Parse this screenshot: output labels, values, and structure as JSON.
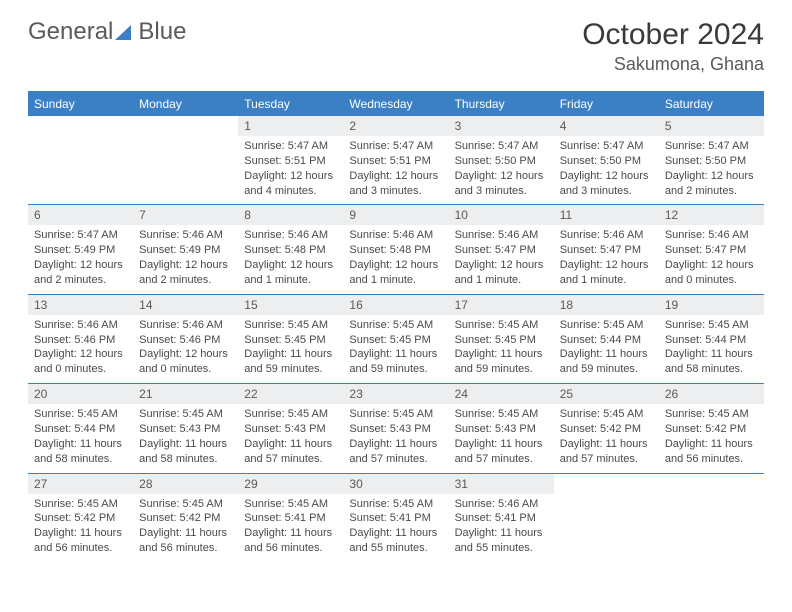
{
  "logo": {
    "general": "General",
    "blue": "Blue"
  },
  "title": "October 2024",
  "location": "Sakumona, Ghana",
  "day_headers": [
    "Sunday",
    "Monday",
    "Tuesday",
    "Wednesday",
    "Thursday",
    "Friday",
    "Saturday"
  ],
  "colors": {
    "accent": "#3b7fc4",
    "header_bg": "#3b7fc4",
    "header_text": "#ffffff",
    "daynum_bg": "#eceeef",
    "border": "#3b7fc4"
  },
  "weeks": [
    [
      {
        "n": "",
        "sr": "",
        "ss": "",
        "dl": ""
      },
      {
        "n": "",
        "sr": "",
        "ss": "",
        "dl": ""
      },
      {
        "n": "1",
        "sr": "Sunrise: 5:47 AM",
        "ss": "Sunset: 5:51 PM",
        "dl": "Daylight: 12 hours and 4 minutes."
      },
      {
        "n": "2",
        "sr": "Sunrise: 5:47 AM",
        "ss": "Sunset: 5:51 PM",
        "dl": "Daylight: 12 hours and 3 minutes."
      },
      {
        "n": "3",
        "sr": "Sunrise: 5:47 AM",
        "ss": "Sunset: 5:50 PM",
        "dl": "Daylight: 12 hours and 3 minutes."
      },
      {
        "n": "4",
        "sr": "Sunrise: 5:47 AM",
        "ss": "Sunset: 5:50 PM",
        "dl": "Daylight: 12 hours and 3 minutes."
      },
      {
        "n": "5",
        "sr": "Sunrise: 5:47 AM",
        "ss": "Sunset: 5:50 PM",
        "dl": "Daylight: 12 hours and 2 minutes."
      }
    ],
    [
      {
        "n": "6",
        "sr": "Sunrise: 5:47 AM",
        "ss": "Sunset: 5:49 PM",
        "dl": "Daylight: 12 hours and 2 minutes."
      },
      {
        "n": "7",
        "sr": "Sunrise: 5:46 AM",
        "ss": "Sunset: 5:49 PM",
        "dl": "Daylight: 12 hours and 2 minutes."
      },
      {
        "n": "8",
        "sr": "Sunrise: 5:46 AM",
        "ss": "Sunset: 5:48 PM",
        "dl": "Daylight: 12 hours and 1 minute."
      },
      {
        "n": "9",
        "sr": "Sunrise: 5:46 AM",
        "ss": "Sunset: 5:48 PM",
        "dl": "Daylight: 12 hours and 1 minute."
      },
      {
        "n": "10",
        "sr": "Sunrise: 5:46 AM",
        "ss": "Sunset: 5:47 PM",
        "dl": "Daylight: 12 hours and 1 minute."
      },
      {
        "n": "11",
        "sr": "Sunrise: 5:46 AM",
        "ss": "Sunset: 5:47 PM",
        "dl": "Daylight: 12 hours and 1 minute."
      },
      {
        "n": "12",
        "sr": "Sunrise: 5:46 AM",
        "ss": "Sunset: 5:47 PM",
        "dl": "Daylight: 12 hours and 0 minutes."
      }
    ],
    [
      {
        "n": "13",
        "sr": "Sunrise: 5:46 AM",
        "ss": "Sunset: 5:46 PM",
        "dl": "Daylight: 12 hours and 0 minutes."
      },
      {
        "n": "14",
        "sr": "Sunrise: 5:46 AM",
        "ss": "Sunset: 5:46 PM",
        "dl": "Daylight: 12 hours and 0 minutes."
      },
      {
        "n": "15",
        "sr": "Sunrise: 5:45 AM",
        "ss": "Sunset: 5:45 PM",
        "dl": "Daylight: 11 hours and 59 minutes."
      },
      {
        "n": "16",
        "sr": "Sunrise: 5:45 AM",
        "ss": "Sunset: 5:45 PM",
        "dl": "Daylight: 11 hours and 59 minutes."
      },
      {
        "n": "17",
        "sr": "Sunrise: 5:45 AM",
        "ss": "Sunset: 5:45 PM",
        "dl": "Daylight: 11 hours and 59 minutes."
      },
      {
        "n": "18",
        "sr": "Sunrise: 5:45 AM",
        "ss": "Sunset: 5:44 PM",
        "dl": "Daylight: 11 hours and 59 minutes."
      },
      {
        "n": "19",
        "sr": "Sunrise: 5:45 AM",
        "ss": "Sunset: 5:44 PM",
        "dl": "Daylight: 11 hours and 58 minutes."
      }
    ],
    [
      {
        "n": "20",
        "sr": "Sunrise: 5:45 AM",
        "ss": "Sunset: 5:44 PM",
        "dl": "Daylight: 11 hours and 58 minutes."
      },
      {
        "n": "21",
        "sr": "Sunrise: 5:45 AM",
        "ss": "Sunset: 5:43 PM",
        "dl": "Daylight: 11 hours and 58 minutes."
      },
      {
        "n": "22",
        "sr": "Sunrise: 5:45 AM",
        "ss": "Sunset: 5:43 PM",
        "dl": "Daylight: 11 hours and 57 minutes."
      },
      {
        "n": "23",
        "sr": "Sunrise: 5:45 AM",
        "ss": "Sunset: 5:43 PM",
        "dl": "Daylight: 11 hours and 57 minutes."
      },
      {
        "n": "24",
        "sr": "Sunrise: 5:45 AM",
        "ss": "Sunset: 5:43 PM",
        "dl": "Daylight: 11 hours and 57 minutes."
      },
      {
        "n": "25",
        "sr": "Sunrise: 5:45 AM",
        "ss": "Sunset: 5:42 PM",
        "dl": "Daylight: 11 hours and 57 minutes."
      },
      {
        "n": "26",
        "sr": "Sunrise: 5:45 AM",
        "ss": "Sunset: 5:42 PM",
        "dl": "Daylight: 11 hours and 56 minutes."
      }
    ],
    [
      {
        "n": "27",
        "sr": "Sunrise: 5:45 AM",
        "ss": "Sunset: 5:42 PM",
        "dl": "Daylight: 11 hours and 56 minutes."
      },
      {
        "n": "28",
        "sr": "Sunrise: 5:45 AM",
        "ss": "Sunset: 5:42 PM",
        "dl": "Daylight: 11 hours and 56 minutes."
      },
      {
        "n": "29",
        "sr": "Sunrise: 5:45 AM",
        "ss": "Sunset: 5:41 PM",
        "dl": "Daylight: 11 hours and 56 minutes."
      },
      {
        "n": "30",
        "sr": "Sunrise: 5:45 AM",
        "ss": "Sunset: 5:41 PM",
        "dl": "Daylight: 11 hours and 55 minutes."
      },
      {
        "n": "31",
        "sr": "Sunrise: 5:46 AM",
        "ss": "Sunset: 5:41 PM",
        "dl": "Daylight: 11 hours and 55 minutes."
      },
      {
        "n": "",
        "sr": "",
        "ss": "",
        "dl": ""
      },
      {
        "n": "",
        "sr": "",
        "ss": "",
        "dl": ""
      }
    ]
  ]
}
